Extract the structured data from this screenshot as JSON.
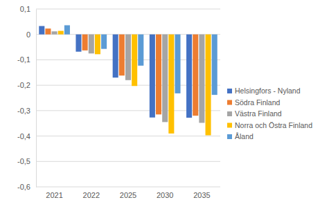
{
  "chart_data": {
    "type": "bar",
    "categories": [
      "2021",
      "2022",
      "2025",
      "2030",
      "2035"
    ],
    "series": [
      {
        "name": "Helsingfors - Nyland",
        "color": "#4472c4",
        "values": [
          0.033,
          -0.068,
          -0.17,
          -0.327,
          -0.328
        ]
      },
      {
        "name": "Södra Finland",
        "color": "#ed7d31",
        "values": [
          0.023,
          -0.063,
          -0.162,
          -0.315,
          -0.32
        ]
      },
      {
        "name": "Västra Finland",
        "color": "#a5a5a5",
        "values": [
          0.012,
          -0.075,
          -0.18,
          -0.345,
          -0.348
        ]
      },
      {
        "name": "Norra och Östra Finland",
        "color": "#ffc000",
        "values": [
          0.014,
          -0.078,
          -0.203,
          -0.39,
          -0.397
        ]
      },
      {
        "name": "Åland",
        "color": "#5b9bd5",
        "values": [
          0.036,
          -0.057,
          -0.123,
          -0.232,
          -0.238
        ]
      }
    ],
    "ylim": [
      -0.6,
      0.1
    ],
    "yticks": [
      {
        "value": 0.1,
        "label": "0,1"
      },
      0,
      {
        "value": -0.1,
        "label": "-0,1"
      },
      {
        "value": -0.2,
        "label": "-0,2"
      },
      {
        "value": -0.3,
        "label": "-0,3"
      },
      {
        "value": -0.4,
        "label": "-0,4"
      },
      {
        "value": -0.5,
        "label": "-0,5"
      },
      {
        "value": -0.6,
        "label": "-0,6"
      }
    ],
    "grid": true,
    "legend": "right"
  }
}
